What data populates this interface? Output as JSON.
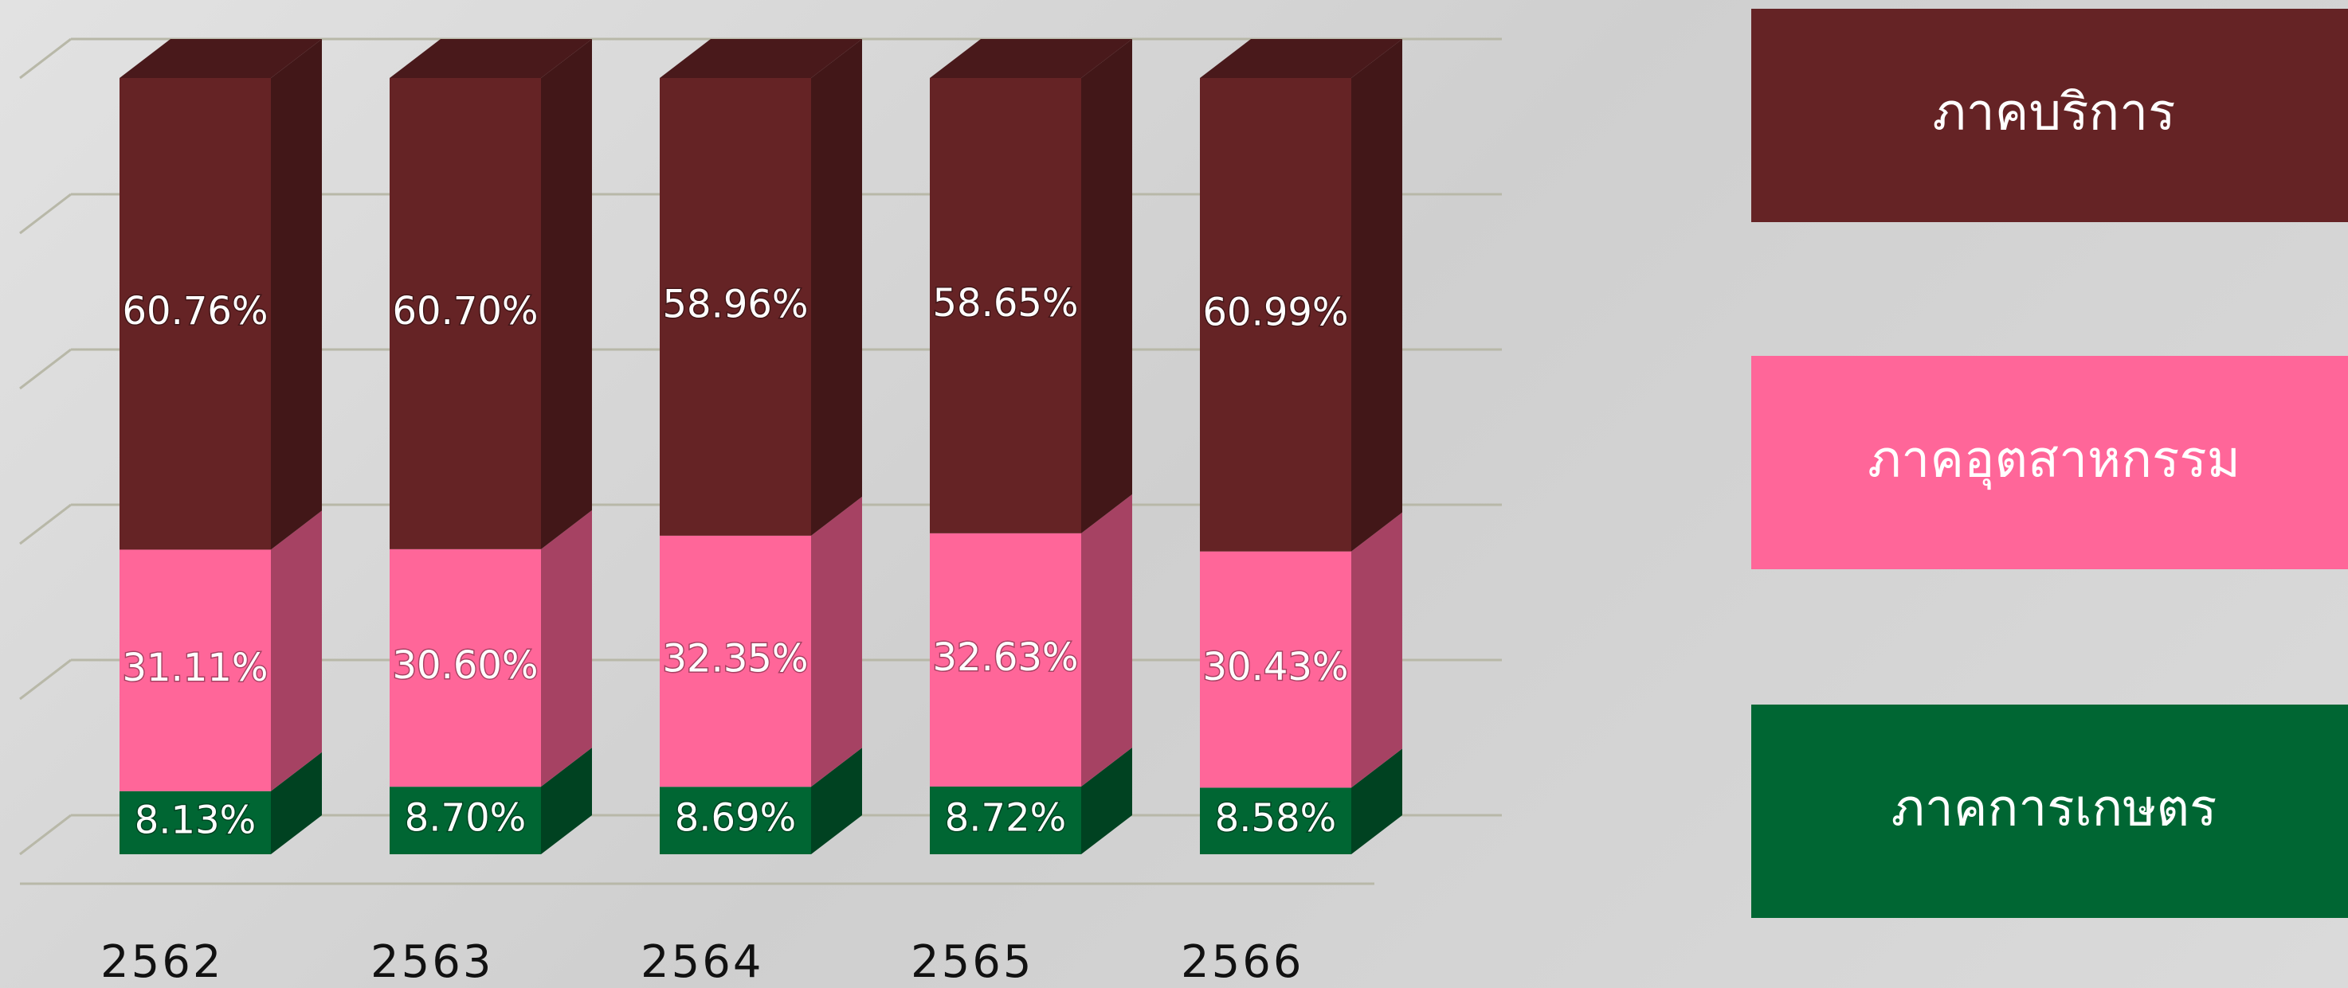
{
  "chart_data": {
    "type": "bar3d_stacked",
    "categories": [
      "2562",
      "2563",
      "2564",
      "2565",
      "2566"
    ],
    "series": [
      {
        "name": "ภาคการเกษตร",
        "color": "#006633",
        "values": [
          8.13,
          8.7,
          8.69,
          8.72,
          8.58
        ],
        "value_labels": [
          "8.13%",
          "8.70%",
          "8.69%",
          "8.72%",
          "8.58%"
        ]
      },
      {
        "name": "ภาคอุตสาหกรรม",
        "color": "#ff6699",
        "values": [
          31.11,
          30.6,
          32.35,
          32.63,
          30.43
        ],
        "value_labels": [
          "31.11%",
          "30.60%",
          "32.35%",
          "32.63%",
          "30.43%"
        ]
      },
      {
        "name": "ภาคบริการ",
        "color": "#652325",
        "values": [
          60.76,
          60.7,
          58.96,
          58.65,
          60.99
        ],
        "value_labels": [
          "60.76%",
          "60.70%",
          "58.96%",
          "58.65%",
          "60.99%"
        ]
      }
    ],
    "ylim": [
      0,
      100
    ],
    "yticks": [
      0,
      20,
      40,
      60,
      80,
      100
    ],
    "grid": true
  }
}
